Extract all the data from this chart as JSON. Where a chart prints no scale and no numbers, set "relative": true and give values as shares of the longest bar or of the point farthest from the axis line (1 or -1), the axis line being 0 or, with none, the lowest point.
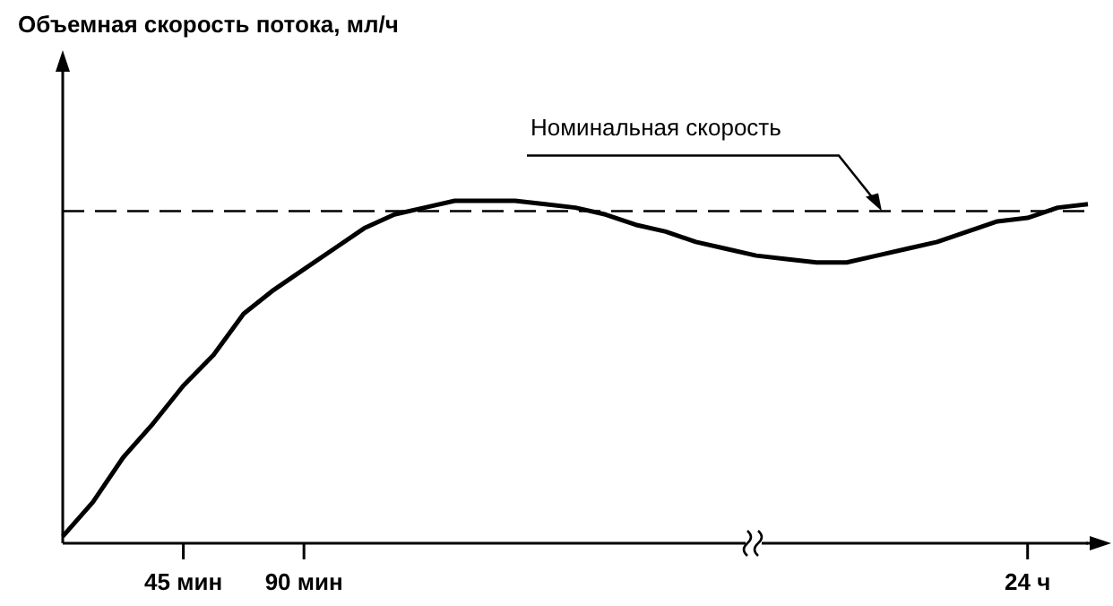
{
  "chart_data": {
    "type": "line",
    "annotations": [
      "Объемная скорость потока, мл/ч"
    ],
    "relative": true,
    "grid": false,
    "legend": false,
    "marker": "none",
    "line_style": "solid",
    "categories": [
      null,
      null,
      null,
      null,
      "45 мин",
      null,
      null,
      null,
      "90 мин",
      null,
      null,
      null,
      null,
      null,
      null,
      null,
      null,
      null,
      null,
      null,
      null,
      null,
      null,
      null,
      null,
      null,
      null,
      null,
      null,
      null,
      null,
      null,
      "24 ч",
      null,
      null
    ],
    "series": [
      {
        "color": "#000000",
        "values": [
          0.02,
          0.12,
          0.25,
          0.35,
          0.46,
          0.55,
          0.67,
          0.74,
          0.8,
          0.86,
          0.92,
          0.96,
          0.98,
          1,
          1,
          1,
          0.99,
          0.98,
          0.96,
          0.93,
          0.91,
          0.88,
          0.86,
          0.84,
          0.83,
          0.82,
          0.82,
          0.84,
          0.86,
          0.88,
          0.91,
          0.94,
          0.95,
          0.98,
          0.99
        ]
      }
    ],
    "ref_lines": [
      {
        "axis": "y",
        "value": 0.97,
        "label": "Номинальная скорость",
        "color": "#000000",
        "line_style": "dashed"
      }
    ]
  }
}
